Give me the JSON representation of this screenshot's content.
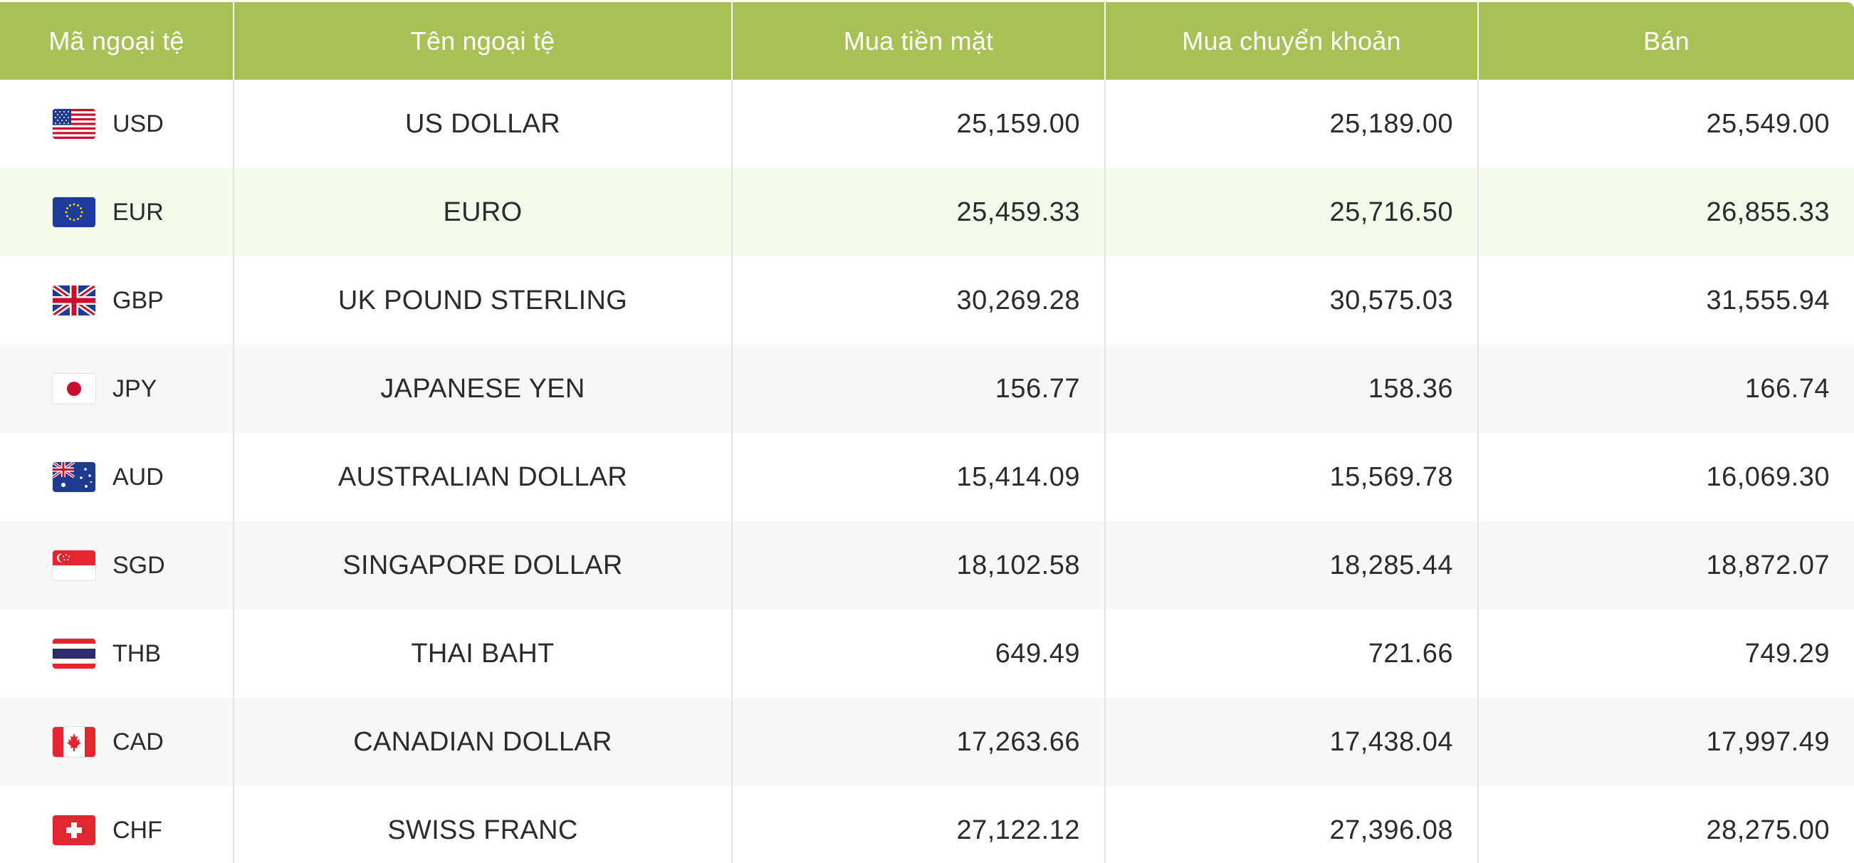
{
  "table": {
    "headers": {
      "code": "Mã ngoại tệ",
      "name": "Tên ngoại tệ",
      "cash_buy": "Mua tiền mặt",
      "transfer_buy": "Mua chuyển khoản",
      "sell": "Bán"
    },
    "rows": [
      {
        "code": "USD",
        "name": "US DOLLAR",
        "cash_buy": "25,159.00",
        "transfer_buy": "25,189.00",
        "sell": "25,549.00",
        "flag": "us-flag-icon"
      },
      {
        "code": "EUR",
        "name": "EURO",
        "cash_buy": "25,459.33",
        "transfer_buy": "25,716.50",
        "sell": "26,855.33",
        "flag": "eu-flag-icon"
      },
      {
        "code": "GBP",
        "name": "UK POUND STERLING",
        "cash_buy": "30,269.28",
        "transfer_buy": "30,575.03",
        "sell": "31,555.94",
        "flag": "uk-flag-icon"
      },
      {
        "code": "JPY",
        "name": "JAPANESE YEN",
        "cash_buy": "156.77",
        "transfer_buy": "158.36",
        "sell": "166.74",
        "flag": "japan-flag-icon"
      },
      {
        "code": "AUD",
        "name": "AUSTRALIAN DOLLAR",
        "cash_buy": "15,414.09",
        "transfer_buy": "15,569.78",
        "sell": "16,069.30",
        "flag": "australia-flag-icon"
      },
      {
        "code": "SGD",
        "name": "SINGAPORE DOLLAR",
        "cash_buy": "18,102.58",
        "transfer_buy": "18,285.44",
        "sell": "18,872.07",
        "flag": "singapore-flag-icon"
      },
      {
        "code": "THB",
        "name": "THAI BAHT",
        "cash_buy": "649.49",
        "transfer_buy": "721.66",
        "sell": "749.29",
        "flag": "thailand-flag-icon"
      },
      {
        "code": "CAD",
        "name": "CANADIAN DOLLAR",
        "cash_buy": "17,263.66",
        "transfer_buy": "17,438.04",
        "sell": "17,997.49",
        "flag": "canada-flag-icon"
      },
      {
        "code": "CHF",
        "name": "SWISS FRANC",
        "cash_buy": "27,122.12",
        "transfer_buy": "27,396.08",
        "sell": "28,275.00",
        "flag": "switzerland-flag-icon"
      }
    ]
  },
  "colors": {
    "header_bg": "#a7c156",
    "header_text": "#ffffff",
    "row_highlight": "#f5fbea",
    "row_alt": "#f7f7f7",
    "text": "#2b2b2b"
  }
}
